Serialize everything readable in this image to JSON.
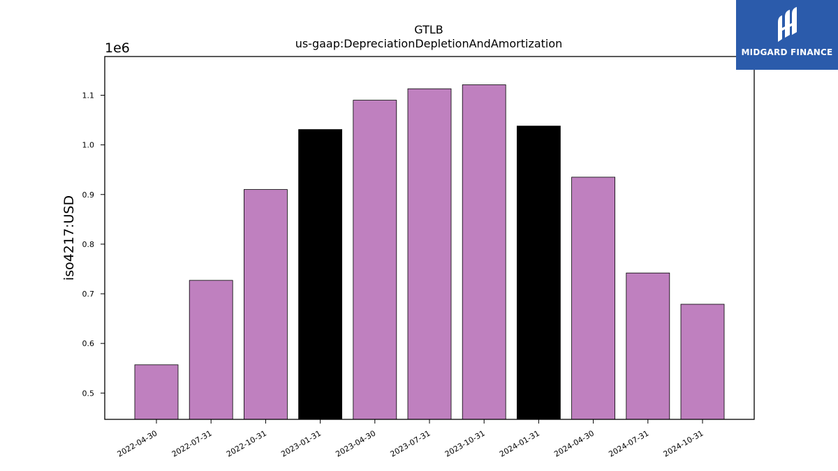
{
  "chart_data": {
    "type": "bar",
    "title": "GTLB",
    "subtitle": "us-gaap:DepreciationDepletionAndAmortization",
    "ylabel": "iso4217:USD",
    "xlabel": "",
    "scale_label": "1e6",
    "categories": [
      "2022-04-30",
      "2022-07-31",
      "2022-10-31",
      "2023-01-31",
      "2023-04-30",
      "2023-07-31",
      "2023-10-31",
      "2024-01-31",
      "2024-04-30",
      "2024-07-31",
      "2024-10-31"
    ],
    "values": [
      557000,
      727000,
      910000,
      1031000,
      1090000,
      1113000,
      1121000,
      1038000,
      935000,
      742000,
      679000
    ],
    "highlight": [
      false,
      false,
      false,
      true,
      false,
      false,
      false,
      true,
      false,
      false,
      false
    ],
    "ylim": [
      0.447,
      1.178
    ],
    "yticks": [
      0.5,
      0.6,
      0.7,
      0.8,
      0.9,
      1.0,
      1.1
    ],
    "ytick_labels": [
      "0.5",
      "0.6",
      "0.7",
      "0.8",
      "0.9",
      "1.0",
      "1.1"
    ],
    "grid": false,
    "colors": {
      "bar": "#bf80bf",
      "highlight": "#000000",
      "edge": "#000000"
    }
  },
  "logo": {
    "text": "MIDGARD FINANCE",
    "bg": "#2b5bab"
  }
}
